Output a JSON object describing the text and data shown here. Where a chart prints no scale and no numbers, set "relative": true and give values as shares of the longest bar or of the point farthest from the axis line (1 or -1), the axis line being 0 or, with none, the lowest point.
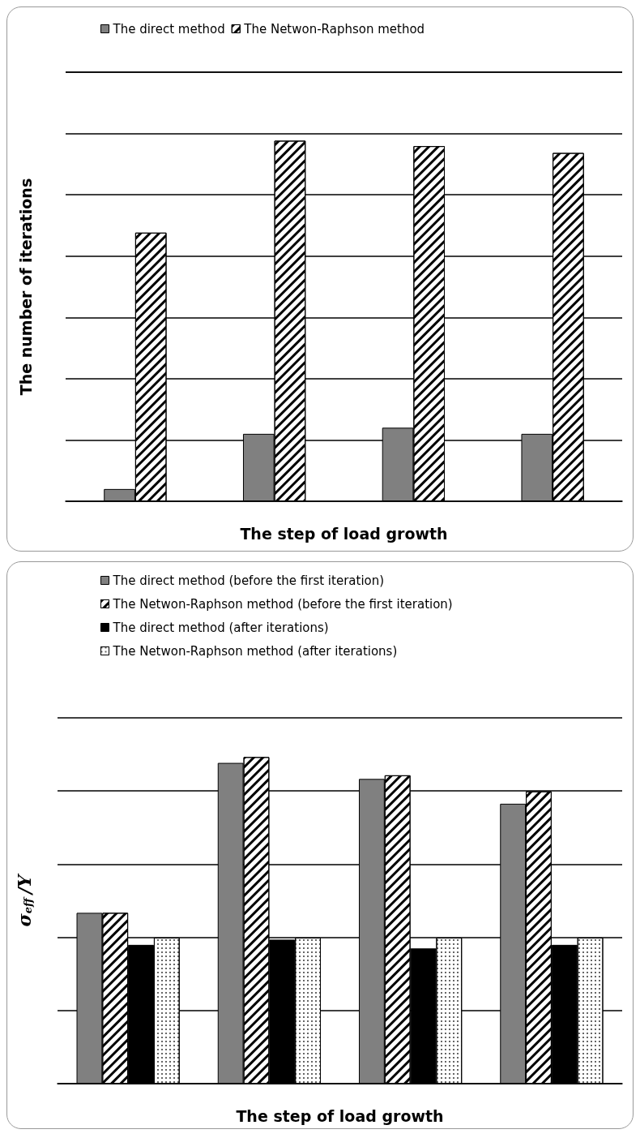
{
  "chart_data": [
    {
      "type": "bar",
      "xlabel": "The step of load growth",
      "ylabel": "The number of iterations",
      "categories": [
        null,
        null,
        null,
        null
      ],
      "relative": true,
      "grid": "y",
      "legend": "top",
      "series": [
        {
          "name": "The direct method",
          "color": "#808080",
          "values": [
            0.034,
            0.187,
            0.204,
            0.187
          ]
        },
        {
          "name": "The Netwon-Raphson method",
          "color": "#ffffff",
          "values": [
            0.745,
            1,
            0.985,
            0.966
          ]
        }
      ]
    },
    {
      "type": "bar",
      "xlabel": "The step of load growth",
      "ylabel": "σ$_{eff}$/Y",
      "categories": [
        null,
        null,
        null,
        null
      ],
      "relative": true,
      "grid": "y",
      "legend": "top",
      "series": [
        {
          "name": "The direct method (before the first iteration)",
          "color": "#808080",
          "values": [
            0.523,
            0.982,
            0.933,
            0.857
          ]
        },
        {
          "name": "The Netwon-Raphson method (before the first iteration)",
          "color": "#ffffff",
          "values": [
            0.523,
            1,
            0.944,
            0.895
          ]
        },
        {
          "name": "The direct method (after iterations)",
          "color": "#000000",
          "values": [
            0.425,
            0.441,
            0.414,
            0.425
          ]
        },
        {
          "name": "The Netwon-Raphson method (after iterations)",
          "color": "#ffffff",
          "values": [
            0.447,
            0.447,
            0.447,
            0.447
          ]
        }
      ]
    }
  ]
}
